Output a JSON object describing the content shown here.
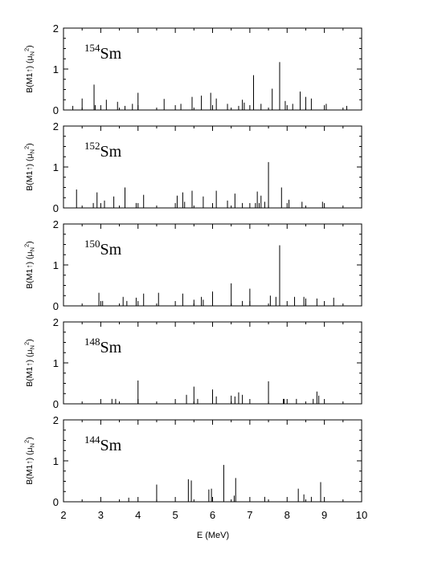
{
  "figure": {
    "xlabel": "E (MeV)",
    "x_ticks": [
      "2",
      "3",
      "4",
      "5",
      "6",
      "7",
      "8",
      "9",
      "10"
    ],
    "ylabel_main": "B(M1",
    "ylabel_arrow": "↑",
    "ylabel_mid": ") (μ",
    "ylabel_sub": "N",
    "ylabel_sup": "2",
    "ylabel_end": ")",
    "y_ticks": [
      "0",
      "1",
      "2"
    ],
    "element": "Sm"
  },
  "chart_data": [
    {
      "type": "bar",
      "isotope_mass": "154",
      "element": "Sm",
      "xlabel": "E (MeV)",
      "ylabel": "B(M1↑) (μN²)",
      "xlim": [
        2,
        10
      ],
      "ylim": [
        0,
        2
      ],
      "x": [
        2.25,
        2.5,
        2.82,
        2.85,
        3.15,
        3.45,
        3.65,
        3.85,
        4.0,
        4.7,
        5.15,
        5.45,
        5.7,
        5.95,
        6.1,
        6.4,
        6.7,
        6.8,
        6.85,
        7.1,
        7.3,
        7.6,
        7.8,
        7.95,
        8.15,
        8.35,
        8.5,
        8.65,
        9.05,
        9.6
      ],
      "values": [
        0.1,
        0.28,
        0.62,
        0.12,
        0.25,
        0.2,
        0.1,
        0.15,
        0.42,
        0.27,
        0.15,
        0.32,
        0.35,
        0.42,
        0.28,
        0.15,
        0.1,
        0.25,
        0.18,
        0.85,
        0.15,
        0.52,
        1.17,
        0.22,
        0.15,
        0.45,
        0.32,
        0.28,
        0.15,
        0.1
      ]
    },
    {
      "type": "bar",
      "isotope_mass": "152",
      "element": "Sm",
      "xlabel": "E (MeV)",
      "ylabel": "B(M1↑) (μN²)",
      "xlim": [
        2,
        10
      ],
      "ylim": [
        0,
        2
      ],
      "x": [
        2.35,
        2.8,
        2.9,
        3.1,
        3.35,
        3.65,
        3.95,
        4.15,
        5.05,
        5.2,
        5.25,
        5.45,
        5.75,
        6.1,
        6.4,
        6.6,
        6.8,
        7.15,
        7.2,
        7.25,
        7.3,
        7.4,
        7.5,
        7.85,
        8.05,
        8.4,
        8.95
      ],
      "values": [
        0.45,
        0.12,
        0.38,
        0.18,
        0.28,
        0.5,
        0.12,
        0.32,
        0.3,
        0.38,
        0.15,
        0.42,
        0.28,
        0.42,
        0.18,
        0.35,
        0.12,
        0.12,
        0.4,
        0.12,
        0.3,
        0.15,
        1.12,
        0.5,
        0.2,
        0.15,
        0.15
      ]
    },
    {
      "type": "bar",
      "isotope_mass": "150",
      "element": "Sm",
      "xlabel": "E (MeV)",
      "ylabel": "B(M1↑) (μN²)",
      "xlim": [
        2,
        10
      ],
      "ylim": [
        0,
        2
      ],
      "x": [
        2.95,
        3.05,
        3.6,
        3.7,
        3.95,
        4.15,
        4.55,
        5.2,
        5.5,
        5.7,
        5.75,
        6.0,
        6.5,
        6.8,
        7.0,
        7.55,
        7.7,
        7.8,
        8.2,
        8.45,
        8.5,
        8.8,
        9.25
      ],
      "values": [
        0.32,
        0.12,
        0.22,
        0.12,
        0.2,
        0.3,
        0.32,
        0.3,
        0.15,
        0.22,
        0.15,
        0.35,
        0.55,
        0.12,
        0.42,
        0.25,
        0.22,
        1.48,
        0.22,
        0.22,
        0.18,
        0.18,
        0.2
      ]
    },
    {
      "type": "bar",
      "isotope_mass": "148",
      "element": "Sm",
      "xlabel": "E (MeV)",
      "ylabel": "B(M1↑) (μN²)",
      "xlim": [
        2,
        10
      ],
      "ylim": [
        0,
        2
      ],
      "x": [
        3.3,
        3.4,
        4.0,
        5.3,
        5.5,
        5.6,
        6.0,
        6.1,
        6.5,
        6.6,
        6.7,
        6.8,
        7.5,
        7.9,
        7.92,
        8.25,
        8.7,
        8.8,
        8.85
      ],
      "values": [
        0.12,
        0.12,
        0.57,
        0.22,
        0.42,
        0.12,
        0.35,
        0.18,
        0.2,
        0.18,
        0.28,
        0.22,
        0.55,
        0.12,
        0.12,
        0.12,
        0.12,
        0.3,
        0.2
      ]
    },
    {
      "type": "bar",
      "isotope_mass": "144",
      "element": "Sm",
      "xlabel": "E (MeV)",
      "ylabel": "B(M1↑) (μN²)",
      "xlim": [
        2,
        10
      ],
      "ylim": [
        0,
        2
      ],
      "x": [
        3.75,
        4.5,
        5.35,
        5.43,
        5.9,
        5.97,
        6.3,
        6.58,
        6.62,
        7.4,
        8.3,
        8.45,
        8.65,
        8.9
      ],
      "values": [
        0.1,
        0.42,
        0.55,
        0.52,
        0.3,
        0.32,
        0.9,
        0.15,
        0.58,
        0.12,
        0.32,
        0.18,
        0.12,
        0.48
      ]
    }
  ]
}
